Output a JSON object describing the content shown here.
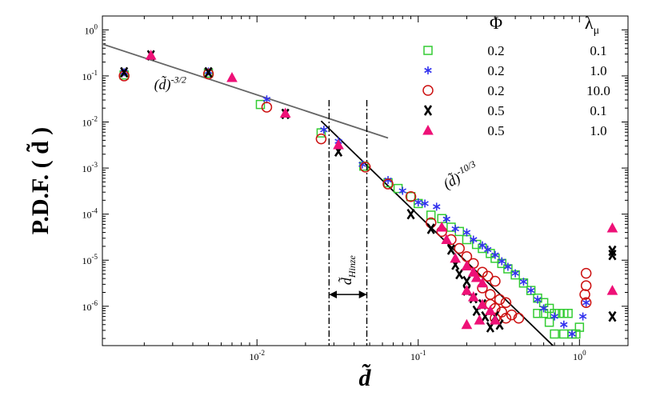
{
  "chart_data": {
    "type": "scatter",
    "xscale": "log",
    "yscale": "log",
    "xlim": [
      0.0011,
      2.0
    ],
    "ylim": [
      1.4e-07,
      2.0
    ],
    "xlabel": "d̃",
    "ylabel": "P.D.F. ( d̃ )",
    "x_ticks": [
      {
        "value": 0.01,
        "base": "10",
        "exp": "-2"
      },
      {
        "value": 0.1,
        "base": "10",
        "exp": "-1"
      },
      {
        "value": 1,
        "base": "10",
        "exp": "0"
      }
    ],
    "y_ticks": [
      {
        "value": 1e-06,
        "base": "10",
        "exp": "-6"
      },
      {
        "value": 1e-05,
        "base": "10",
        "exp": "-5"
      },
      {
        "value": 0.0001,
        "base": "10",
        "exp": "-4"
      },
      {
        "value": 0.001,
        "base": "10",
        "exp": "-3"
      },
      {
        "value": 0.01,
        "base": "10",
        "exp": "-2"
      },
      {
        "value": 0.1,
        "base": "10",
        "exp": "-1"
      },
      {
        "value": 1,
        "base": "10",
        "exp": "0"
      }
    ],
    "legend": {
      "header_phi": "Φ",
      "header_lambda": "λ",
      "header_lambda_sub": "μ"
    },
    "series": [
      {
        "name": "s1",
        "phi": "0.2",
        "lambda": "0.1",
        "marker": "square",
        "color": "#33cc33",
        "points": [
          [
            0.0015,
            0.105
          ],
          [
            0.005,
            0.115
          ],
          [
            0.0105,
            0.024
          ],
          [
            0.025,
            0.0058
          ],
          [
            0.046,
            0.0011
          ],
          [
            0.065,
            0.00048
          ],
          [
            0.075,
            0.00036
          ],
          [
            0.09,
            0.00024
          ],
          [
            0.1,
            0.00017
          ],
          [
            0.12,
            9.5e-05
          ],
          [
            0.14,
            8e-05
          ],
          [
            0.16,
            5.2e-05
          ],
          [
            0.18,
            4.2e-05
          ],
          [
            0.2,
            2.8e-05
          ],
          [
            0.23,
            2.2e-05
          ],
          [
            0.25,
            1.8e-05
          ],
          [
            0.28,
            1.4e-05
          ],
          [
            0.3,
            1.1e-05
          ],
          [
            0.33,
            8.5e-06
          ],
          [
            0.36,
            6.5e-06
          ],
          [
            0.4,
            4.8e-06
          ],
          [
            0.45,
            3.2e-06
          ],
          [
            0.5,
            2.2e-06
          ],
          [
            0.55,
            1.5e-06
          ],
          [
            0.6,
            1.2e-06
          ],
          [
            0.65,
            9e-07
          ],
          [
            0.7,
            7e-07
          ],
          [
            0.75,
            7e-07
          ],
          [
            0.8,
            7e-07
          ],
          [
            0.85,
            7e-07
          ],
          [
            0.55,
            7e-07
          ],
          [
            0.6,
            7e-07
          ],
          [
            0.65,
            4.5e-07
          ],
          [
            0.7,
            2.5e-07
          ],
          [
            0.8,
            2.5e-07
          ],
          [
            0.9,
            2.5e-07
          ],
          [
            0.95,
            2.5e-07
          ],
          [
            1.0,
            3.5e-07
          ]
        ]
      },
      {
        "name": "s2",
        "phi": "0.2",
        "lambda": "1.0",
        "marker": "star",
        "color": "#3333ee",
        "points": [
          [
            0.0015,
            0.12
          ],
          [
            0.005,
            0.125
          ],
          [
            0.0115,
            0.031
          ],
          [
            0.026,
            0.0068
          ],
          [
            0.032,
            0.0038
          ],
          [
            0.045,
            0.0012
          ],
          [
            0.065,
            0.00055
          ],
          [
            0.08,
            0.00032
          ],
          [
            0.1,
            0.00018
          ],
          [
            0.11,
            0.00017
          ],
          [
            0.13,
            0.000145
          ],
          [
            0.15,
            7.8e-05
          ],
          [
            0.17,
            4.8e-05
          ],
          [
            0.2,
            4e-05
          ],
          [
            0.22,
            2.8e-05
          ],
          [
            0.25,
            2.1e-05
          ],
          [
            0.27,
            1.7e-05
          ],
          [
            0.3,
            1.3e-05
          ],
          [
            0.33,
            9.5e-06
          ],
          [
            0.36,
            7.2e-06
          ],
          [
            0.4,
            5.2e-06
          ],
          [
            0.45,
            3.4e-06
          ],
          [
            0.5,
            2.2e-06
          ],
          [
            0.55,
            1.4e-06
          ],
          [
            0.6,
            9e-07
          ],
          [
            0.7,
            6e-07
          ],
          [
            0.8,
            4e-07
          ],
          [
            0.9,
            2.5e-07
          ],
          [
            1.05,
            6e-07
          ],
          [
            1.1,
            1.2e-06
          ]
        ]
      },
      {
        "name": "s3",
        "phi": "0.2",
        "lambda": "10.0",
        "marker": "circle",
        "color": "#cc1111",
        "points": [
          [
            0.0015,
            0.1
          ],
          [
            0.005,
            0.11
          ],
          [
            0.0115,
            0.021
          ],
          [
            0.025,
            0.0043
          ],
          [
            0.047,
            0.00105
          ],
          [
            0.065,
            0.00045
          ],
          [
            0.09,
            0.00024
          ],
          [
            0.12,
            6.5e-05
          ],
          [
            0.14,
            4.2e-05
          ],
          [
            0.16,
            2.8e-05
          ],
          [
            0.18,
            1.8e-05
          ],
          [
            0.2,
            1.2e-05
          ],
          [
            0.22,
            8.5e-06
          ],
          [
            0.25,
            5.5e-06
          ],
          [
            0.27,
            4.5e-06
          ],
          [
            0.3,
            3.5e-06
          ],
          [
            0.25,
            2.5e-06
          ],
          [
            0.28,
            1.8e-06
          ],
          [
            0.32,
            1.4e-06
          ],
          [
            0.35,
            1.2e-06
          ],
          [
            0.28,
            1.1e-06
          ],
          [
            0.3,
            9e-07
          ],
          [
            0.33,
            7.5e-07
          ],
          [
            0.38,
            6.5e-07
          ],
          [
            0.42,
            5.5e-07
          ],
          [
            0.3,
            5.5e-07
          ],
          [
            0.35,
            5.5e-07
          ],
          [
            1.08,
            1.8e-06
          ],
          [
            1.1,
            2.8e-06
          ],
          [
            1.1,
            5.2e-06
          ],
          [
            1.1,
            1.2e-06
          ]
        ]
      },
      {
        "name": "s4",
        "phi": "0.5",
        "lambda": "0.1",
        "marker": "x",
        "color": "#000000",
        "points": [
          [
            0.0015,
            0.12
          ],
          [
            0.0022,
            0.28
          ],
          [
            0.005,
            0.12
          ],
          [
            0.015,
            0.015
          ],
          [
            0.032,
            0.0023
          ],
          [
            0.09,
            0.0001
          ],
          [
            0.12,
            4.8e-05
          ],
          [
            0.16,
            1.7e-05
          ],
          [
            0.17,
            8e-06
          ],
          [
            0.18,
            5e-06
          ],
          [
            0.2,
            3.5e-06
          ],
          [
            0.2,
            2.2e-06
          ],
          [
            0.22,
            1.5e-06
          ],
          [
            0.25,
            1.1e-06
          ],
          [
            0.23,
            8e-07
          ],
          [
            0.26,
            6e-07
          ],
          [
            0.3,
            6e-07
          ],
          [
            0.32,
            4e-07
          ],
          [
            0.28,
            3.5e-07
          ],
          [
            1.6,
            1.3e-05
          ],
          [
            1.6,
            1.6e-05
          ],
          [
            1.6,
            6e-07
          ]
        ]
      },
      {
        "name": "s5",
        "phi": "0.5",
        "lambda": "1.0",
        "marker": "triangle",
        "color": "#ee1177",
        "points": [
          [
            0.0022,
            0.28
          ],
          [
            0.007,
            0.092
          ],
          [
            0.015,
            0.0155
          ],
          [
            0.032,
            0.0032
          ],
          [
            0.14,
            5.2e-05
          ],
          [
            0.15,
            2.8e-05
          ],
          [
            0.17,
            1.1e-05
          ],
          [
            0.2,
            7.5e-06
          ],
          [
            0.22,
            5.5e-06
          ],
          [
            0.23,
            4.2e-06
          ],
          [
            0.25,
            3.2e-06
          ],
          [
            0.2,
            2.2e-06
          ],
          [
            0.22,
            1.6e-06
          ],
          [
            0.25,
            1.1e-06
          ],
          [
            0.28,
            8e-07
          ],
          [
            0.24,
            5e-07
          ],
          [
            0.3,
            5e-07
          ],
          [
            0.2,
            4e-07
          ],
          [
            1.6,
            5e-05
          ],
          [
            1.6,
            2.2e-06
          ]
        ]
      }
    ],
    "fit_lines": [
      {
        "name": "fit1",
        "x": [
          0.001,
          0.065
        ],
        "y": [
          0.55,
          0.0045
        ],
        "label_base": "(d̃)",
        "label_exp": "-3/2",
        "label_at": [
          0.0023,
          0.052
        ],
        "color": "#666666"
      },
      {
        "name": "fit2",
        "x": [
          0.025,
          0.7
        ],
        "y": [
          0.0105,
          1.3e-07
        ],
        "label_base": "(d̃)",
        "label_exp": "-10/3",
        "label_at": [
          0.15,
          0.00035
        ],
        "color": "#000000"
      }
    ],
    "vlines": [
      0.028,
      0.048
    ],
    "hinze": {
      "label": "d̃",
      "sub": "Hinze",
      "arrow_y": 1.8e-06
    }
  }
}
